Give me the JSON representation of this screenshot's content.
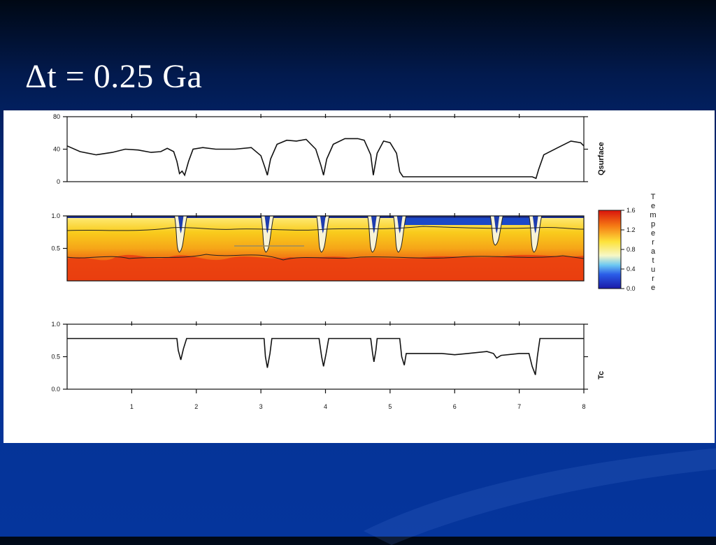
{
  "slide": {
    "title": "Δt = 0.25 Ga"
  },
  "colors": {
    "background_dark": "#000814",
    "background_blue": "#05359c",
    "line": "#111111",
    "cold_lid": "#1c49c8",
    "hot_mantle": "#ee4010",
    "warm_mantle": "#f7c81f"
  },
  "chart_data": [
    {
      "type": "line",
      "ylabel": "Qsurface",
      "ylim": [
        0,
        80
      ],
      "yticks": [
        "0",
        "40",
        "80"
      ],
      "xlim": [
        0,
        8
      ],
      "points": [
        [
          0,
          44
        ],
        [
          0.2,
          37
        ],
        [
          0.45,
          33
        ],
        [
          0.7,
          36
        ],
        [
          0.9,
          40
        ],
        [
          1.1,
          39
        ],
        [
          1.3,
          36
        ],
        [
          1.45,
          37
        ],
        [
          1.55,
          41
        ],
        [
          1.65,
          37
        ],
        [
          1.7,
          25
        ],
        [
          1.74,
          10
        ],
        [
          1.78,
          13
        ],
        [
          1.82,
          8
        ],
        [
          1.88,
          25
        ],
        [
          1.95,
          40
        ],
        [
          2.1,
          42
        ],
        [
          2.3,
          40
        ],
        [
          2.6,
          40
        ],
        [
          2.85,
          42
        ],
        [
          3.0,
          32
        ],
        [
          3.06,
          18
        ],
        [
          3.1,
          8
        ],
        [
          3.15,
          28
        ],
        [
          3.25,
          46
        ],
        [
          3.4,
          51
        ],
        [
          3.55,
          50
        ],
        [
          3.7,
          52
        ],
        [
          3.85,
          40
        ],
        [
          3.93,
          20
        ],
        [
          3.97,
          8
        ],
        [
          4.02,
          28
        ],
        [
          4.12,
          46
        ],
        [
          4.3,
          53
        ],
        [
          4.5,
          53
        ],
        [
          4.6,
          51
        ],
        [
          4.7,
          33
        ],
        [
          4.74,
          8
        ],
        [
          4.8,
          35
        ],
        [
          4.9,
          50
        ],
        [
          5.0,
          48
        ],
        [
          5.1,
          35
        ],
        [
          5.15,
          12
        ],
        [
          5.2,
          6
        ],
        [
          5.5,
          6
        ],
        [
          6.0,
          6
        ],
        [
          6.5,
          6
        ],
        [
          7.0,
          6
        ],
        [
          7.2,
          6
        ],
        [
          7.26,
          4
        ],
        [
          7.3,
          15
        ],
        [
          7.38,
          33
        ],
        [
          7.6,
          42
        ],
        [
          7.8,
          50
        ],
        [
          7.95,
          48
        ],
        [
          8.0,
          44
        ]
      ]
    },
    {
      "type": "heatmap",
      "colorbar_label": "Temperature",
      "colorbar_ticks": [
        "0.0",
        "0.4",
        "0.8",
        "1.2",
        "1.6"
      ],
      "y_ticks": [
        "0.5",
        "1.0"
      ],
      "xlim": [
        0,
        8
      ],
      "ylim": [
        0,
        1
      ],
      "value_range": [
        0,
        1.6
      ],
      "cold_lid_region": [
        5.2,
        7.25
      ],
      "downwellings_x": [
        1.76,
        3.1,
        3.96,
        4.75,
        5.15,
        6.65,
        7.25
      ]
    },
    {
      "type": "line",
      "ylabel": "Tc",
      "ylim": [
        0,
        1
      ],
      "yticks": [
        "0.0",
        "0.5",
        "1.0"
      ],
      "xlim": [
        0,
        8
      ],
      "xticks": [
        "1",
        "2",
        "3",
        "4",
        "5",
        "6",
        "7",
        "8"
      ],
      "points": [
        [
          0,
          0.78
        ],
        [
          1.0,
          0.78
        ],
        [
          1.7,
          0.78
        ],
        [
          1.72,
          0.6
        ],
        [
          1.76,
          0.45
        ],
        [
          1.8,
          0.62
        ],
        [
          1.85,
          0.78
        ],
        [
          2.5,
          0.78
        ],
        [
          3.05,
          0.78
        ],
        [
          3.07,
          0.5
        ],
        [
          3.1,
          0.33
        ],
        [
          3.14,
          0.55
        ],
        [
          3.17,
          0.78
        ],
        [
          3.9,
          0.78
        ],
        [
          3.94,
          0.5
        ],
        [
          3.97,
          0.35
        ],
        [
          4.01,
          0.55
        ],
        [
          4.05,
          0.78
        ],
        [
          4.7,
          0.78
        ],
        [
          4.73,
          0.55
        ],
        [
          4.75,
          0.42
        ],
        [
          4.78,
          0.6
        ],
        [
          4.8,
          0.78
        ],
        [
          5.15,
          0.78
        ],
        [
          5.18,
          0.5
        ],
        [
          5.22,
          0.37
        ],
        [
          5.25,
          0.55
        ],
        [
          5.8,
          0.55
        ],
        [
          6.0,
          0.53
        ],
        [
          6.2,
          0.55
        ],
        [
          6.5,
          0.58
        ],
        [
          6.6,
          0.55
        ],
        [
          6.65,
          0.48
        ],
        [
          6.72,
          0.52
        ],
        [
          7.0,
          0.55
        ],
        [
          7.15,
          0.55
        ],
        [
          7.2,
          0.35
        ],
        [
          7.25,
          0.22
        ],
        [
          7.28,
          0.5
        ],
        [
          7.32,
          0.78
        ],
        [
          8.0,
          0.78
        ]
      ]
    }
  ]
}
